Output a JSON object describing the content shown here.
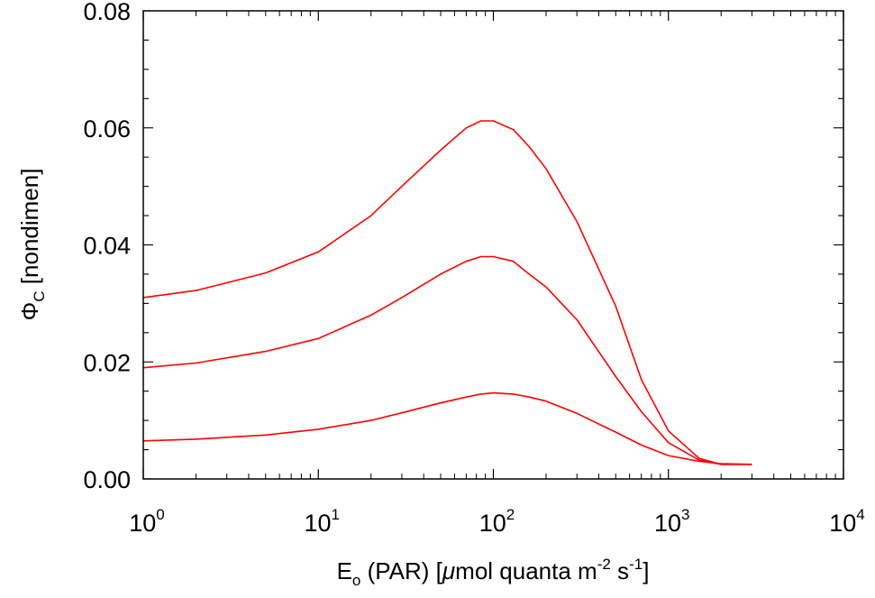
{
  "chart_data": {
    "type": "line",
    "xscale": "log",
    "xlim": [
      1,
      10000
    ],
    "ylim": [
      0.0,
      0.08
    ],
    "grid": false,
    "legend": "none",
    "line_color": "#ff0000",
    "x_tick_base": "10",
    "x_tick_exponents": [
      "0",
      "1",
      "2",
      "3",
      "4"
    ],
    "y_ticks": [
      "0.00",
      "0.02",
      "0.04",
      "0.06",
      "0.08"
    ],
    "xlabel": {
      "main": "E",
      "sub": "o",
      "rest1": " (PAR)  [",
      "mu": "μ",
      "rest2": "mol quanta m",
      "sup1": "-2",
      "rest3": " s",
      "sup2": "-1",
      "rest4": "]"
    },
    "ylabel": {
      "main": "Φ",
      "sub": "C",
      "rest": "  [nondimen]"
    },
    "series": [
      {
        "x": [
          1,
          2,
          5,
          10,
          20,
          30,
          50,
          70,
          85,
          100,
          130,
          160,
          200,
          300,
          500,
          700,
          1000,
          1500,
          2000,
          3000
        ],
        "values": [
          0.031,
          0.0322,
          0.0352,
          0.0388,
          0.045,
          0.05,
          0.0562,
          0.06,
          0.0612,
          0.0612,
          0.0597,
          0.0568,
          0.053,
          0.044,
          0.0295,
          0.017,
          0.0082,
          0.0035,
          0.0025,
          0.0025
        ]
      },
      {
        "x": [
          1,
          2,
          5,
          10,
          20,
          30,
          50,
          70,
          85,
          100,
          130,
          160,
          200,
          300,
          500,
          700,
          1000,
          1500,
          2000,
          3000
        ],
        "values": [
          0.019,
          0.0198,
          0.0218,
          0.024,
          0.028,
          0.031,
          0.035,
          0.0372,
          0.038,
          0.038,
          0.0372,
          0.035,
          0.0328,
          0.0272,
          0.0175,
          0.0115,
          0.0062,
          0.0032,
          0.0025,
          0.0025
        ]
      },
      {
        "x": [
          1,
          2,
          5,
          10,
          20,
          30,
          50,
          70,
          85,
          100,
          130,
          160,
          200,
          300,
          500,
          700,
          1000,
          1500,
          2000,
          3000
        ],
        "values": [
          0.0065,
          0.0068,
          0.0075,
          0.0085,
          0.01,
          0.0113,
          0.013,
          0.014,
          0.0145,
          0.0147,
          0.0145,
          0.014,
          0.0133,
          0.0112,
          0.008,
          0.0058,
          0.004,
          0.003,
          0.0026,
          0.0025
        ]
      }
    ]
  }
}
